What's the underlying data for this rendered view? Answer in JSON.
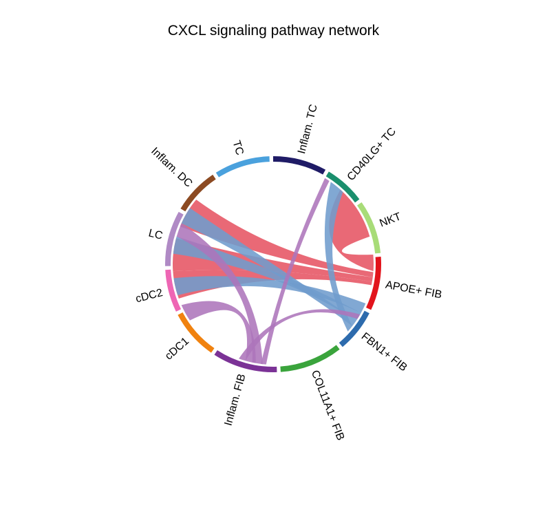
{
  "chart_data": {
    "type": "chord",
    "title": "CXCL signaling pathway network",
    "groups": [
      {
        "name": "Inflam. TC",
        "color": "#1f1b66",
        "start": 0,
        "end": 29
      },
      {
        "name": "CD40LG+ TC",
        "color": "#1a8f6d",
        "start": 31,
        "end": 53
      },
      {
        "name": "NKT",
        "color": "#a8dc78",
        "start": 55,
        "end": 84
      },
      {
        "name": "APOE+ FIB",
        "color": "#e2141c",
        "start": 86,
        "end": 115
      },
      {
        "name": "FBN1+ FIB",
        "color": "#2d6bad",
        "start": 117,
        "end": 140
      },
      {
        "name": "COL11A1+ FIB",
        "color": "#3aa43c",
        "start": 142,
        "end": 176
      },
      {
        "name": "Inflam. FIB",
        "color": "#7b3296",
        "start": 178,
        "end": 213
      },
      {
        "name": "cDC1",
        "color": "#f0820f",
        "start": 215,
        "end": 242
      },
      {
        "name": "cDC2",
        "color": "#ee66b4",
        "start": 244,
        "end": 267
      },
      {
        "name": "LC",
        "color": "#b08ac5",
        "start": 269,
        "end": 299
      },
      {
        "name": "Inflam. DC",
        "color": "#8c4a22",
        "start": 301,
        "end": 326
      },
      {
        "name": "TC",
        "color": "#4aa1dd",
        "start": 328,
        "end": 358
      }
    ],
    "chords": [
      {
        "source": "APOE+ FIB",
        "target": "LC",
        "color": "#e65463",
        "s": [
          94.5,
          97.5
        ],
        "t": [
          292,
          310
        ],
        "ctrl": 0.12
      },
      {
        "source": "APOE+ FIB",
        "target": "LC",
        "color": "#e65463",
        "s": [
          97.5,
          100
        ],
        "t": [
          266,
          285
        ],
        "ctrl": 0.08
      },
      {
        "source": "APOE+ FIB",
        "target": "cDC2",
        "color": "#e65463",
        "s": [
          100,
          102
        ],
        "t": [
          250,
          266
        ],
        "ctrl": 0.08
      },
      {
        "source": "APOE+ FIB",
        "target": "NKT",
        "color": "#e65463",
        "s": [
          84.5,
          94
        ],
        "t": [
          42,
          74
        ],
        "ctrl": 0.2
      },
      {
        "source": "FBN1+ FIB",
        "target": "TC",
        "color": "#6f9ccd",
        "s": [
          124,
          128
        ],
        "t": [
          294,
          304
        ],
        "ctrl": 0.1
      },
      {
        "source": "FBN1+ FIB",
        "target": "LC",
        "color": "#6f9ccd",
        "s": [
          119,
          124
        ],
        "t": [
          276,
          286
        ],
        "ctrl": 0.08
      },
      {
        "source": "FBN1+ FIB",
        "target": "cDC2",
        "color": "#6f9ccd",
        "s": [
          113,
          119
        ],
        "t": [
          252,
          262
        ],
        "ctrl": 0.08
      },
      {
        "source": "FBN1+ FIB",
        "target": "CD40LG+ TC",
        "color": "#6f9ccd",
        "s": [
          128,
          132
        ],
        "t": [
          35,
          44
        ],
        "ctrl": 0.3
      },
      {
        "source": "Inflam. FIB",
        "target": "LC",
        "color": "#ad75bb",
        "s": [
          186,
          192
        ],
        "t": [
          286,
          294
        ],
        "ctrl": 0.15
      },
      {
        "source": "Inflam. FIB",
        "target": "cDC2",
        "color": "#ad75bb",
        "s": [
          190,
          196
        ],
        "t": [
          236,
          246
        ],
        "ctrl": 0.15
      },
      {
        "source": "Inflam. FIB",
        "target": "CD40LG+ TC",
        "color": "#ad75bb",
        "s": [
          184,
          187
        ],
        "t": [
          31,
          34
        ],
        "ctrl": 0.25
      },
      {
        "source": "Inflam. FIB",
        "target": "NKT",
        "color": "#ad75bb",
        "s": [
          196,
          200
        ],
        "t": [
          120,
          123
        ],
        "ctrl": 0.2
      }
    ]
  }
}
